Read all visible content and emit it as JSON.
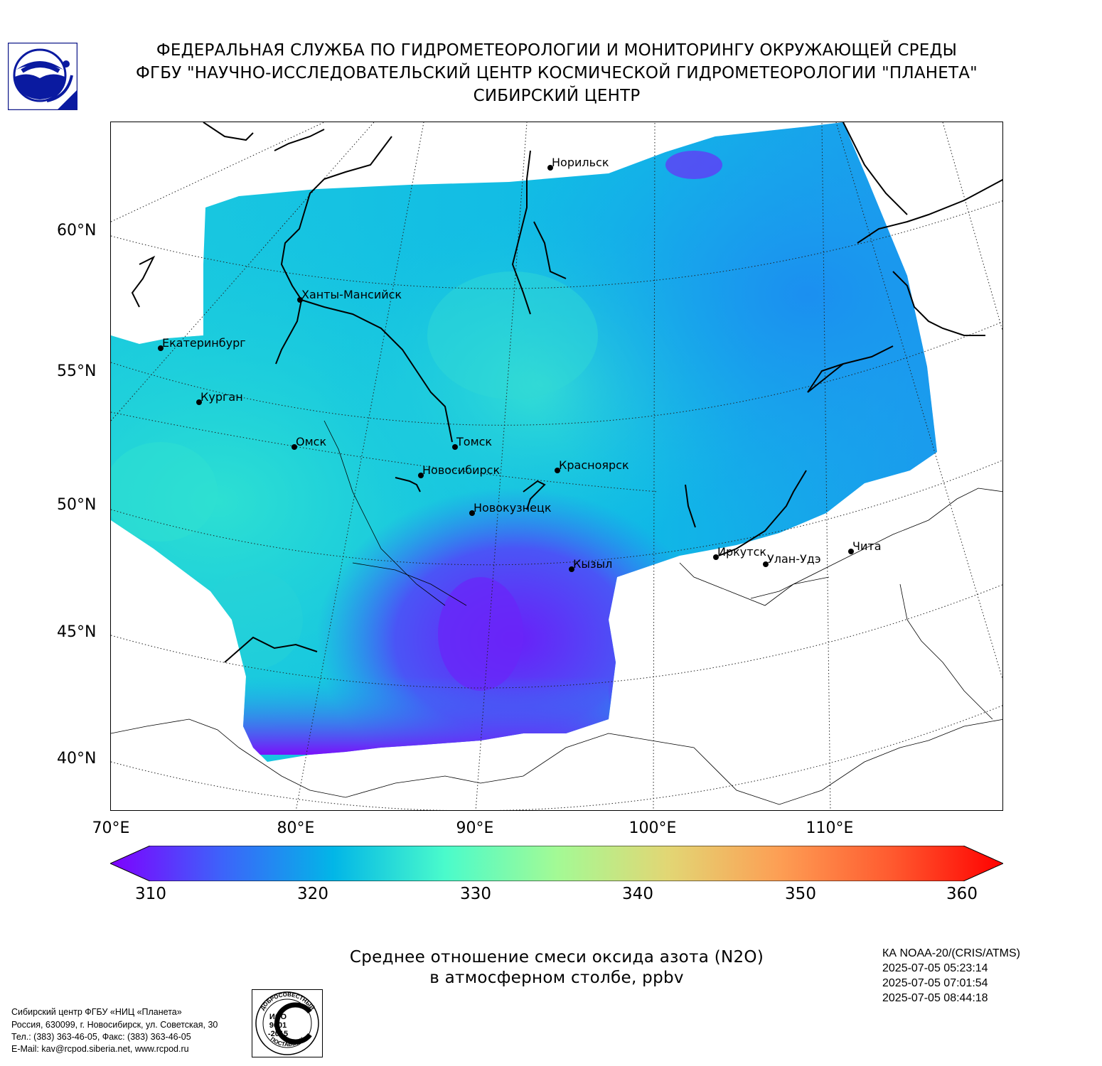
{
  "header": {
    "line1": "ФЕДЕРАЛЬНАЯ СЛУЖБА ПО ГИДРОМЕТЕОРОЛОГИИ И МОНИТОРИНГУ ОКРУЖАЮЩЕЙ СРЕДЫ",
    "line2": "ФГБУ \"НАУЧНО-ИССЛЕДОВАТЕЛЬСКИЙ ЦЕНТР КОСМИЧЕСКОЙ ГИДРОМЕТЕОРОЛОГИИ \"ПЛАНЕТА\"",
    "line3": "СИБИРСКИЙ ЦЕНТР"
  },
  "map": {
    "lat_labels": [
      "60°N",
      "55°N",
      "50°N",
      "45°N",
      "40°N"
    ],
    "lon_labels": [
      "70°E",
      "80°E",
      "90°E",
      "100°E",
      "110°E"
    ],
    "cities": [
      {
        "name": "Норильск"
      },
      {
        "name": "Ханты-Мансийск"
      },
      {
        "name": "Екатеринбург"
      },
      {
        "name": "Курган"
      },
      {
        "name": "Омск"
      },
      {
        "name": "Томск"
      },
      {
        "name": "Новосибирск"
      },
      {
        "name": "Красноярск"
      },
      {
        "name": "Новокузнецк"
      },
      {
        "name": "Иркутск"
      },
      {
        "name": "Улан-Удэ"
      },
      {
        "name": "Чита"
      },
      {
        "name": "Кызыл"
      }
    ]
  },
  "colorbar": {
    "ticks": [
      "310",
      "320",
      "330",
      "340",
      "350",
      "360"
    ],
    "min": 310,
    "max": 360,
    "colors": [
      "#7f00ff",
      "#3d63fa",
      "#02b6e7",
      "#4afbcb",
      "#a3fa95",
      "#e2d674",
      "#fd9e54",
      "#ff5a2f",
      "#ff0000"
    ]
  },
  "title": {
    "line1": "Среднее отношение смеси оксида азота (N2O)",
    "line2": "в атмосферном столбе, ppbv"
  },
  "satellite": {
    "name": "КА NOAA-20/(CRIS/ATMS)",
    "times": [
      "2025-07-05 05:23:14",
      "2025-07-05 07:01:54",
      "2025-07-05 08:44:18"
    ]
  },
  "footer": {
    "line1": "Сибирский центр ФГБУ «НИЦ «Планета»",
    "line2": "Россия, 630099, г. Новосибирск, ул. Советская, 30",
    "line3": "Тел.: (383) 363-46-05, Факс: (383) 363-46-05",
    "line4": "E-Mail: kav@rcpod.siberia.net, www.rcpod.ru"
  },
  "stamp": {
    "top_text": "ДОБРОСОВЕСТНЫЙ",
    "bottom_text": "ПОСТАВЩИК",
    "iso_line1": "ИСО",
    "iso_line2": "9001",
    "iso_line3": "-2015"
  }
}
